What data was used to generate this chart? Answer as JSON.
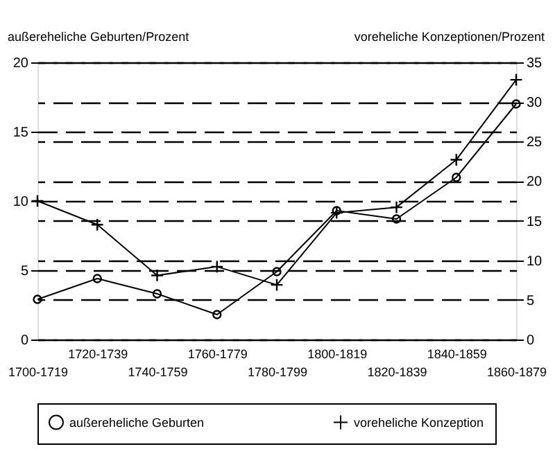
{
  "chart_data": {
    "type": "line",
    "ylabel": "außereheliche Geburten/Prozent",
    "y2label": "voreheliche Konzeptionen/Prozent",
    "categories": [
      "1700-1719",
      "1720-1739",
      "1740-1759",
      "1760-1779",
      "1780-1799",
      "1800-1819",
      "1820-1839",
      "1840-1859",
      "1860-1879"
    ],
    "series": [
      {
        "name": "außereheliche Geburten",
        "color": "#000000",
        "marker": "circle",
        "values": [
          2.9,
          4.4,
          3.3,
          1.8,
          4.9,
          9.3,
          8.7,
          11.7,
          17.0
        ]
      },
      {
        "name": "voreheliche Konzeption",
        "color": "#000000",
        "marker": "cross",
        "axis": "y2",
        "values": [
          17.5,
          14.5,
          8.1,
          9.2,
          6.9,
          16.0,
          16.7,
          22.7,
          32.8
        ]
      }
    ],
    "ylim": [
      0,
      20
    ],
    "yticks": [
      0,
      5,
      10,
      15,
      20
    ],
    "y2lim": [
      0,
      35
    ],
    "y2ticks": [
      0,
      5,
      10,
      15,
      20,
      25,
      30,
      35
    ],
    "grid": "y",
    "legend": "bottom",
    "line_style": "solid"
  }
}
